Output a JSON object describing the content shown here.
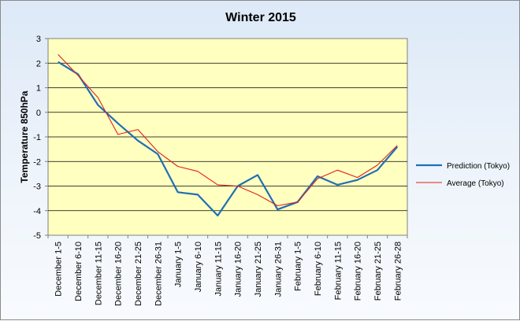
{
  "chart_data": {
    "type": "line",
    "title": "Winter 2015",
    "xlabel": "",
    "ylabel": "Temperature 850hPa",
    "ylim": [
      -5,
      3
    ],
    "yticks": [
      3,
      2,
      1,
      0,
      -1,
      -2,
      -3,
      -4,
      -5
    ],
    "categories": [
      "December 1-5",
      "December 6-10",
      "December 11-15",
      "December 16-20",
      "December 21-25",
      "December 26-31",
      "January 1-5",
      "January 6-10",
      "January 11-15",
      "January 16-20",
      "January 21-25",
      "January 26-31",
      "February 1-5",
      "February 6-10",
      "February 11-15",
      "February 16-20",
      "February 21-25",
      "February 26-28"
    ],
    "series": [
      {
        "name": "Prediction (Tokyo)",
        "color": "#1f6fb5",
        "values": [
          2.05,
          1.55,
          0.3,
          -0.45,
          -1.15,
          -1.7,
          -3.25,
          -3.35,
          -4.2,
          -3.0,
          -2.55,
          -3.95,
          -3.65,
          -2.6,
          -2.95,
          -2.75,
          -2.35,
          -1.4
        ]
      },
      {
        "name": "Average (Tokyo)",
        "color": "#e0201b",
        "values": [
          2.35,
          1.5,
          0.6,
          -0.9,
          -0.7,
          -1.6,
          -2.2,
          -2.4,
          -2.95,
          -3.0,
          -3.35,
          -3.8,
          -3.65,
          -2.7,
          -2.35,
          -2.65,
          -2.15,
          -1.35
        ]
      }
    ],
    "grid": true,
    "plot_background": "#ffffc0",
    "legend_position": "right"
  }
}
